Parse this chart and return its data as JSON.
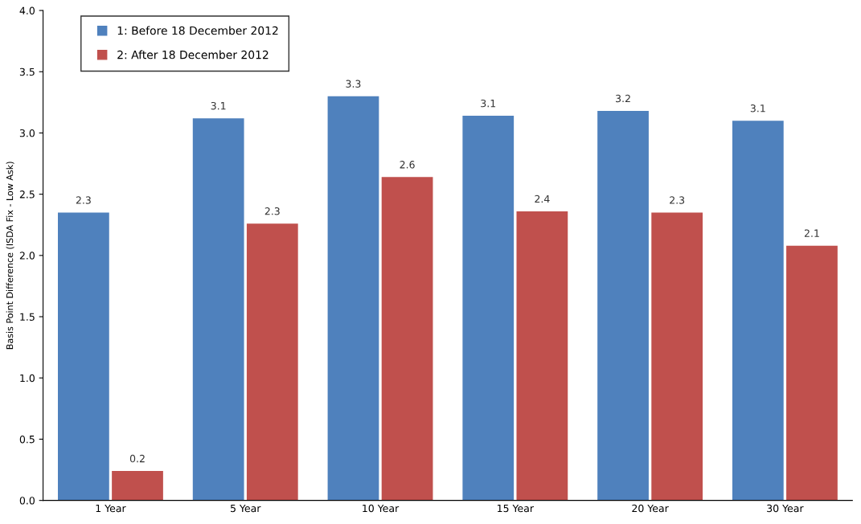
{
  "chart_data": {
    "type": "bar",
    "ylabel": "Basis Point Difference (ISDA Fix - Low Ask)",
    "categories": [
      "1 Year",
      "5 Year",
      "10 Year",
      "15 Year",
      "20 Year",
      "30 Year"
    ],
    "series": [
      {
        "name": "1: Before 18 December 2012",
        "color": "#4f81bd",
        "values": [
          2.35,
          3.12,
          3.3,
          3.14,
          3.18,
          3.1
        ],
        "value_labels": [
          "2.3",
          "3.1",
          "3.3",
          "3.1",
          "3.2",
          "3.1"
        ]
      },
      {
        "name": "2: After 18 December 2012",
        "color": "#c0504d",
        "values": [
          0.24,
          2.26,
          2.64,
          2.36,
          2.35,
          2.08
        ],
        "value_labels": [
          "0.2",
          "2.3",
          "2.6",
          "2.4",
          "2.3",
          "2.1"
        ]
      }
    ],
    "ylim": [
      0,
      4
    ],
    "yticks": [
      {
        "value": 0,
        "label": "0.0"
      },
      {
        "value": 0.5,
        "label": "0.5"
      },
      {
        "value": 1,
        "label": "1.0"
      },
      {
        "value": 1.5,
        "label": "1.5"
      },
      {
        "value": 2,
        "label": "2.0"
      },
      {
        "value": 2.5,
        "label": "2.5"
      },
      {
        "value": 3,
        "label": "3.0"
      },
      {
        "value": 3.5,
        "label": "3.5"
      },
      {
        "value": 4,
        "label": "4.0"
      }
    ],
    "legend": "top left",
    "grid": false
  }
}
